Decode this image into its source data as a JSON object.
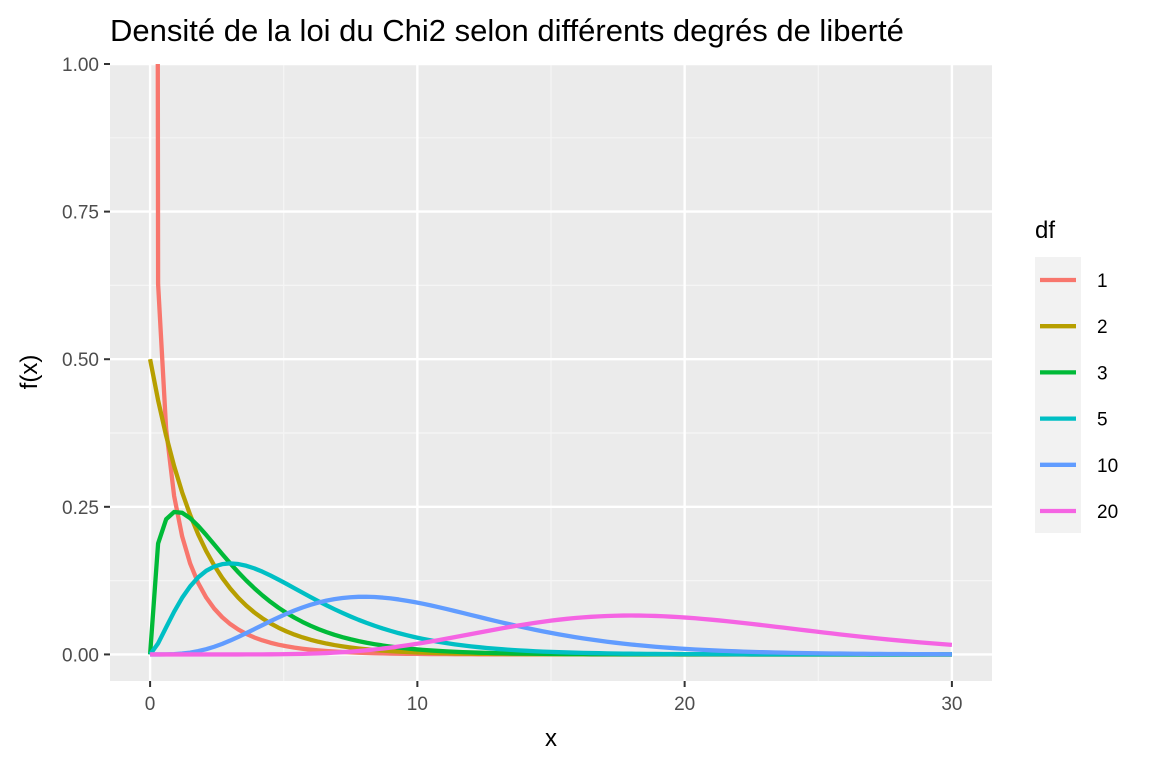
{
  "chart_data": {
    "type": "line",
    "title": "Densité de la loi du Chi2 selon différents degrés de liberté",
    "xlabel": "x",
    "ylabel": "f(x)",
    "xlim": [
      -1.5,
      31.5
    ],
    "ylim": [
      -0.045,
      1.0
    ],
    "x_ticks": [
      0,
      10,
      20,
      30
    ],
    "x_tick_labels": [
      "0",
      "10",
      "20",
      "30"
    ],
    "y_ticks": [
      0.0,
      0.25,
      0.5,
      0.75,
      1.0
    ],
    "y_tick_labels": [
      "0.00",
      "0.25",
      "0.50",
      "0.75",
      "1.00"
    ],
    "grid": true,
    "legend": {
      "title": "df",
      "position": "right",
      "entries": [
        "1",
        "2",
        "3",
        "5",
        "10",
        "20"
      ]
    },
    "x_range": [
      0,
      30
    ],
    "series": [
      {
        "name": "1",
        "df": 1,
        "color": "#F8766D"
      },
      {
        "name": "2",
        "df": 2,
        "color": "#B79F00"
      },
      {
        "name": "3",
        "df": 3,
        "color": "#00BA38"
      },
      {
        "name": "5",
        "df": 5,
        "color": "#00BFC4"
      },
      {
        "name": "10",
        "df": 10,
        "color": "#619CFF"
      },
      {
        "name": "20",
        "df": 20,
        "color": "#F564E3"
      }
    ]
  }
}
